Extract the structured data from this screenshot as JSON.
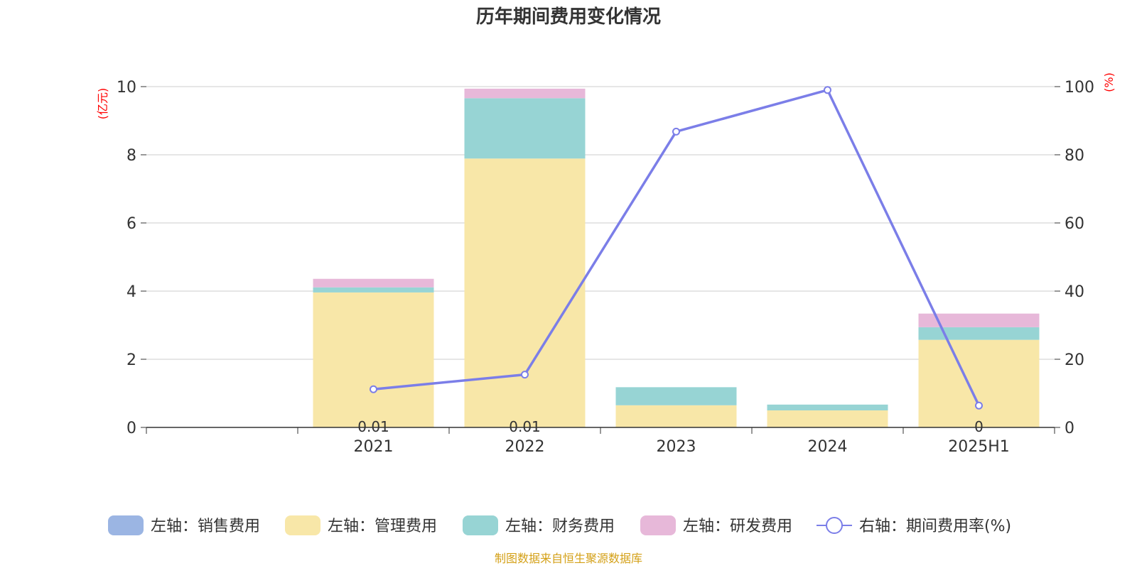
{
  "chart_data": {
    "type": "bar",
    "title": "历年期间费用变化情况",
    "categories": [
      "",
      "2021",
      "2022",
      "2023",
      "2024",
      "2025H1"
    ],
    "y_left": {
      "unit": "(亿元)",
      "range": [
        0,
        10
      ],
      "ticks": [
        "0",
        "2",
        "4",
        "6",
        "8",
        "10"
      ]
    },
    "y_right": {
      "unit": "(%)",
      "range": [
        0,
        100
      ],
      "ticks": [
        "0",
        "20",
        "40",
        "60",
        "80",
        "100"
      ]
    },
    "grid": true,
    "legend_position": "bottom",
    "stacked": true,
    "series": [
      {
        "name": "左轴：销售费用",
        "axis": "left",
        "type": "bar",
        "color": "#9bb5e3",
        "values": [
          null,
          0.01,
          0.01,
          0,
          0,
          0
        ]
      },
      {
        "name": "左轴：管理费用",
        "axis": "left",
        "type": "bar",
        "color": "#f8e7a8",
        "values": [
          null,
          3.95,
          7.88,
          0.65,
          0.5,
          2.57
        ]
      },
      {
        "name": "左轴：财务费用",
        "axis": "left",
        "type": "bar",
        "color": "#97d4d4",
        "values": [
          null,
          0.15,
          1.77,
          0.53,
          0.17,
          0.37
        ]
      },
      {
        "name": "左轴：研发费用",
        "axis": "left",
        "type": "bar",
        "color": "#e7b8d9",
        "values": [
          null,
          0.25,
          0.28,
          0,
          0,
          0.4
        ]
      },
      {
        "name": "右轴：期间费用率(%)",
        "axis": "right",
        "type": "line",
        "color": "#7b7ee8",
        "values": [
          null,
          11.2,
          15.5,
          86.8,
          99.0,
          6.4
        ]
      }
    ],
    "data_labels": [
      {
        "category": "2021",
        "text": "0.01"
      },
      {
        "category": "2022",
        "text": "0.01"
      },
      {
        "category": "2025H1",
        "text": "0"
      }
    ]
  },
  "footer": "制图数据来自恒生聚源数据库"
}
